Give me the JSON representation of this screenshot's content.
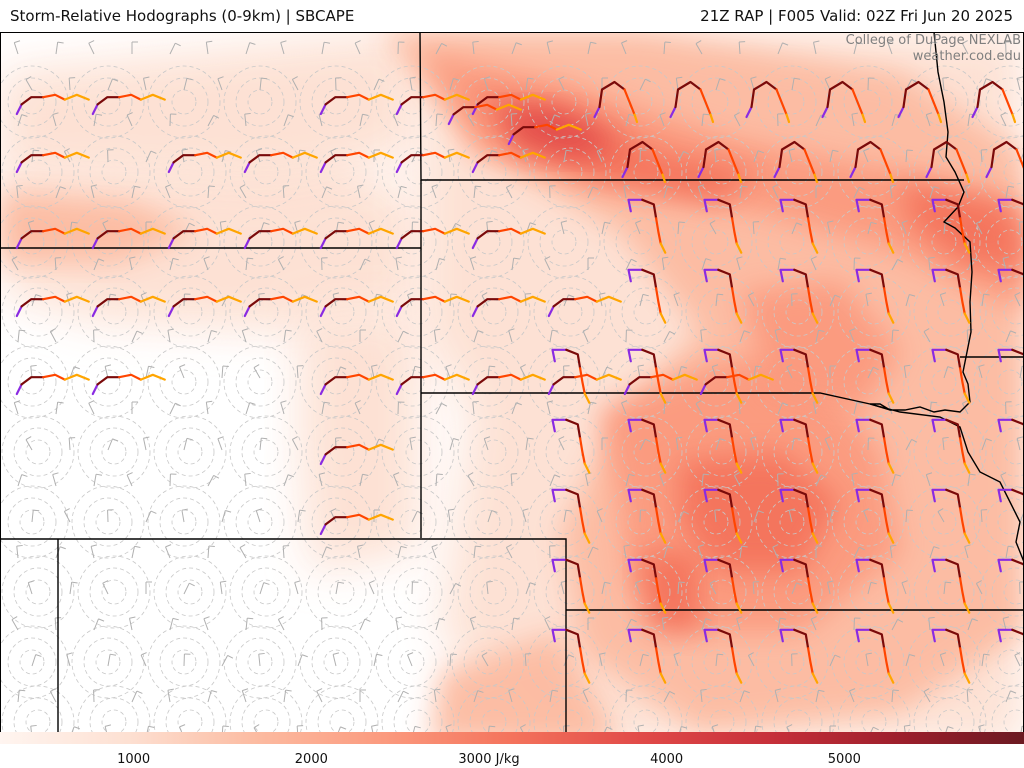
{
  "header": {
    "left_title": "Storm-Relative Hodographs (0-9km) | SBCAPE",
    "right_title": "21Z RAP | F005 Valid: 02Z Fri Jun 20 2025"
  },
  "credit": {
    "line1": "College of DuPage NEXLAB",
    "line2": "weather.cod.edu"
  },
  "colorbar": {
    "unit": "J/kg",
    "range": [
      0,
      6000
    ],
    "ticks": [
      {
        "value": 1000,
        "label": "1000"
      },
      {
        "value": 2000,
        "label": "2000"
      },
      {
        "value": 3000,
        "label": "3000 J/kg"
      },
      {
        "value": 4000,
        "label": "4000"
      },
      {
        "value": 5000,
        "label": "5000"
      }
    ],
    "colors": [
      "#fff5f0",
      "#fde0d2",
      "#fcbba1",
      "#fb9a7e",
      "#f4735c",
      "#e14a48",
      "#c7303a",
      "#9e1f2c",
      "#6b1a22"
    ]
  },
  "hodograph_colors": [
    "#8a2be2",
    "#7a0a0a",
    "#ff4500",
    "#ffa500"
  ]
}
